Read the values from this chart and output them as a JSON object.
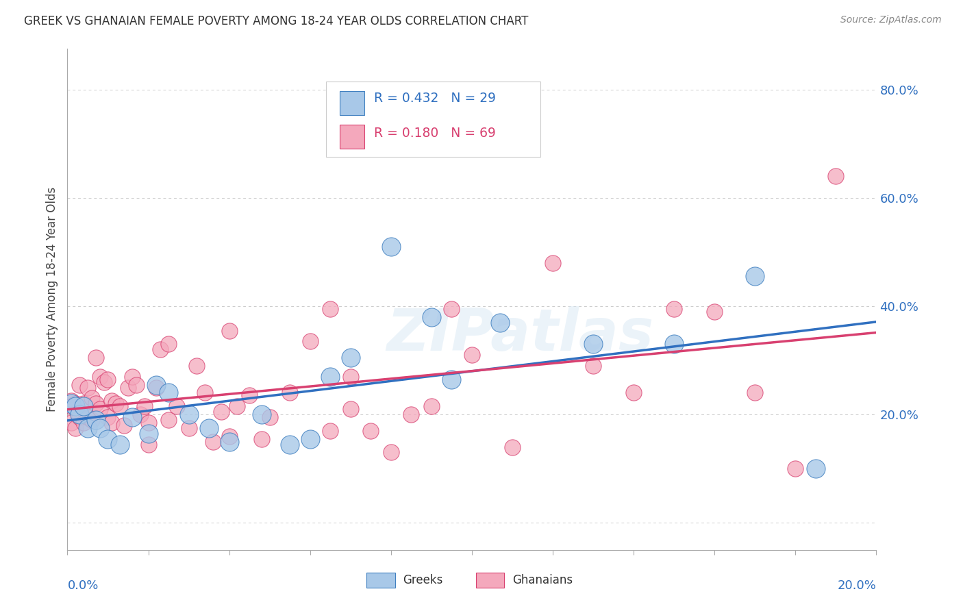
{
  "title": "GREEK VS GHANAIAN FEMALE POVERTY AMONG 18-24 YEAR OLDS CORRELATION CHART",
  "source": "Source: ZipAtlas.com",
  "ylabel": "Female Poverty Among 18-24 Year Olds",
  "xlim": [
    0.0,
    0.2
  ],
  "ylim": [
    -0.05,
    0.875
  ],
  "ytick_vals": [
    0.0,
    0.2,
    0.4,
    0.6,
    0.8
  ],
  "ytick_labels": [
    "",
    "20.0%",
    "40.0%",
    "60.0%",
    "80.0%"
  ],
  "greek_R": 0.432,
  "greek_N": 29,
  "ghanaian_R": 0.18,
  "ghanaian_N": 69,
  "greek_color": "#a8c8e8",
  "ghanaian_color": "#f4a8bc",
  "greek_edge_color": "#4080c0",
  "ghanaian_edge_color": "#d84070",
  "greek_line_color": "#3070c0",
  "ghanaian_line_color": "#d84070",
  "background_color": "#ffffff",
  "grid_color": "#cccccc",
  "title_color": "#333333",
  "greek_x": [
    0.001,
    0.002,
    0.003,
    0.004,
    0.005,
    0.007,
    0.008,
    0.01,
    0.013,
    0.016,
    0.02,
    0.022,
    0.025,
    0.03,
    0.035,
    0.04,
    0.048,
    0.055,
    0.06,
    0.065,
    0.07,
    0.08,
    0.09,
    0.095,
    0.107,
    0.13,
    0.15,
    0.17,
    0.185
  ],
  "greek_y": [
    0.22,
    0.215,
    0.2,
    0.215,
    0.175,
    0.19,
    0.175,
    0.155,
    0.145,
    0.195,
    0.165,
    0.255,
    0.24,
    0.2,
    0.175,
    0.15,
    0.2,
    0.145,
    0.155,
    0.27,
    0.305,
    0.51,
    0.38,
    0.265,
    0.37,
    0.33,
    0.33,
    0.455,
    0.1
  ],
  "ghanaian_x": [
    0.001,
    0.001,
    0.001,
    0.002,
    0.002,
    0.003,
    0.003,
    0.004,
    0.004,
    0.005,
    0.005,
    0.006,
    0.006,
    0.007,
    0.007,
    0.008,
    0.008,
    0.009,
    0.01,
    0.01,
    0.011,
    0.011,
    0.012,
    0.013,
    0.014,
    0.015,
    0.016,
    0.017,
    0.018,
    0.019,
    0.02,
    0.022,
    0.023,
    0.025,
    0.027,
    0.03,
    0.032,
    0.034,
    0.036,
    0.038,
    0.04,
    0.042,
    0.045,
    0.048,
    0.05,
    0.055,
    0.06,
    0.065,
    0.07,
    0.075,
    0.08,
    0.085,
    0.09,
    0.095,
    0.1,
    0.11,
    0.12,
    0.13,
    0.14,
    0.15,
    0.16,
    0.17,
    0.18,
    0.19,
    0.065,
    0.07,
    0.04,
    0.025,
    0.02
  ],
  "ghanaian_y": [
    0.225,
    0.215,
    0.185,
    0.22,
    0.175,
    0.255,
    0.195,
    0.22,
    0.185,
    0.25,
    0.195,
    0.23,
    0.19,
    0.305,
    0.22,
    0.27,
    0.21,
    0.26,
    0.265,
    0.195,
    0.225,
    0.185,
    0.22,
    0.215,
    0.18,
    0.25,
    0.27,
    0.255,
    0.2,
    0.215,
    0.185,
    0.25,
    0.32,
    0.19,
    0.215,
    0.175,
    0.29,
    0.24,
    0.15,
    0.205,
    0.16,
    0.215,
    0.235,
    0.155,
    0.195,
    0.24,
    0.335,
    0.17,
    0.21,
    0.17,
    0.13,
    0.2,
    0.215,
    0.395,
    0.31,
    0.14,
    0.48,
    0.29,
    0.24,
    0.395,
    0.39,
    0.24,
    0.1,
    0.64,
    0.395,
    0.27,
    0.355,
    0.33,
    0.145
  ]
}
